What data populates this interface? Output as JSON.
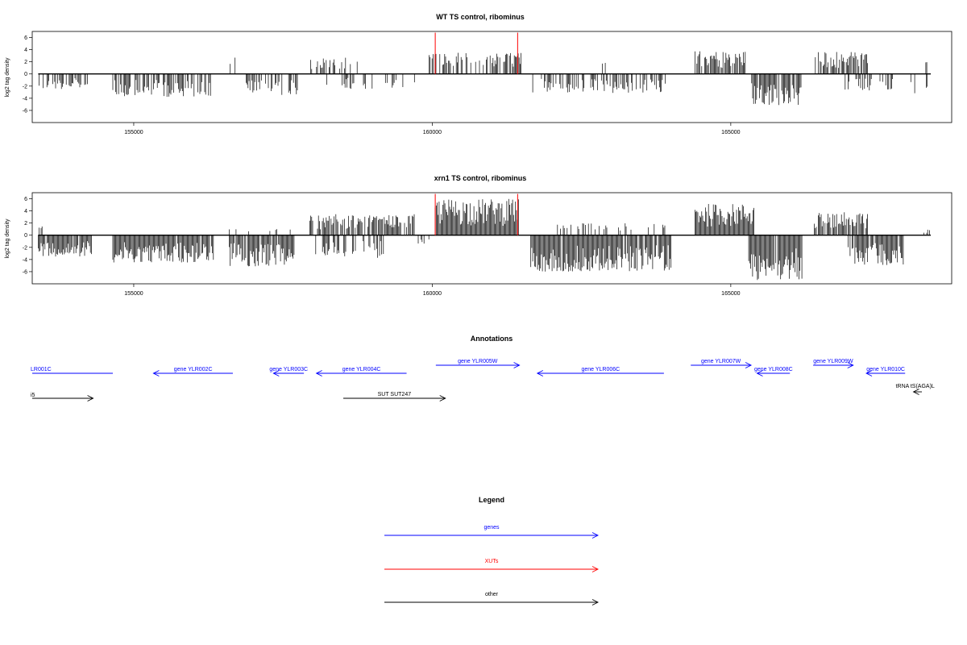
{
  "colors": {
    "genes": "#0000ff",
    "xuts": "#ff0000",
    "other": "#000000",
    "frame": "#000000"
  },
  "chart_data": [
    {
      "type": "bar",
      "title": "WT TS control, ribominus",
      "ylabel": "log2 tag density",
      "xlim": [
        153300,
        168700
      ],
      "ylim": [
        -8,
        7
      ],
      "xticks": [
        155000,
        160000,
        165000
      ],
      "xtick_labels": [
        "155000",
        "160000",
        "165000"
      ],
      "yticks": [
        -6,
        -4,
        -2,
        0,
        2,
        4,
        6
      ],
      "ytick_labels": [
        "-6",
        "-4",
        "-2",
        "0",
        "2",
        "4",
        "6"
      ],
      "xut_markers": [
        160050,
        161430
      ],
      "segments": [
        {
          "from": 153400,
          "to": 154250,
          "sign": -1,
          "max": 2.5,
          "density": 0.55
        },
        {
          "from": 154650,
          "to": 156300,
          "sign": -1,
          "max": 3.8,
          "density": 0.65
        },
        {
          "from": 156600,
          "to": 156700,
          "sign": 1,
          "max": 3.0,
          "density": 0.4
        },
        {
          "from": 156850,
          "to": 157750,
          "sign": -1,
          "max": 3.5,
          "density": 0.6
        },
        {
          "from": 157900,
          "to": 158800,
          "sign": 1,
          "max": 2.8,
          "density": 0.3
        },
        {
          "from": 158200,
          "to": 159000,
          "sign": -1,
          "max": 2.5,
          "density": 0.3
        },
        {
          "from": 159200,
          "to": 159800,
          "sign": -1,
          "max": 2.5,
          "density": 0.15
        },
        {
          "from": 159900,
          "to": 161500,
          "sign": 1,
          "max": 3.5,
          "density": 0.6
        },
        {
          "from": 161650,
          "to": 164000,
          "sign": -1,
          "max": 3.2,
          "density": 0.45
        },
        {
          "from": 162800,
          "to": 163100,
          "sign": 1,
          "max": 2.5,
          "density": 0.1
        },
        {
          "from": 164400,
          "to": 165250,
          "sign": 1,
          "max": 3.8,
          "density": 0.8
        },
        {
          "from": 165350,
          "to": 166200,
          "sign": -1,
          "max": 5.2,
          "density": 0.85
        },
        {
          "from": 166400,
          "to": 167300,
          "sign": 1,
          "max": 3.8,
          "density": 0.8
        },
        {
          "from": 166900,
          "to": 167800,
          "sign": -1,
          "max": 2.8,
          "density": 0.35
        },
        {
          "from": 168000,
          "to": 168300,
          "sign": -1,
          "max": 3.2,
          "density": 0.2
        },
        {
          "from": 168250,
          "to": 168300,
          "sign": 1,
          "max": 2.4,
          "density": 0.3
        }
      ]
    },
    {
      "type": "bar",
      "title": "xrn1 TS control, ribominus",
      "ylabel": "log2 tag density",
      "xlim": [
        153300,
        168700
      ],
      "ylim": [
        -8,
        7
      ],
      "xticks": [
        155000,
        160000,
        165000
      ],
      "xtick_labels": [
        "155000",
        "160000",
        "165000"
      ],
      "yticks": [
        -6,
        -4,
        -2,
        0,
        2,
        4,
        6
      ],
      "ytick_labels": [
        "-6",
        "-4",
        "-2",
        "0",
        "2",
        "4",
        "6"
      ],
      "xut_markers": [
        160050,
        161430
      ],
      "segments": [
        {
          "from": 153400,
          "to": 154300,
          "sign": -1,
          "max": 3.5,
          "density": 0.9
        },
        {
          "from": 153400,
          "to": 153500,
          "sign": 1,
          "max": 1.8,
          "density": 0.6
        },
        {
          "from": 154650,
          "to": 156350,
          "sign": -1,
          "max": 4.5,
          "density": 0.95
        },
        {
          "from": 156600,
          "to": 157700,
          "sign": -1,
          "max": 5.2,
          "density": 0.9
        },
        {
          "from": 156600,
          "to": 157700,
          "sign": 1,
          "max": 1.8,
          "density": 0.2
        },
        {
          "from": 157900,
          "to": 159700,
          "sign": 1,
          "max": 3.5,
          "density": 0.7
        },
        {
          "from": 158000,
          "to": 159200,
          "sign": -1,
          "max": 3.8,
          "density": 0.5
        },
        {
          "from": 159700,
          "to": 160050,
          "sign": -1,
          "max": 1.5,
          "density": 0.2
        },
        {
          "from": 160050,
          "to": 161450,
          "sign": 1,
          "max": 6.0,
          "density": 1.0
        },
        {
          "from": 161650,
          "to": 164000,
          "sign": -1,
          "max": 6.0,
          "density": 0.95
        },
        {
          "from": 162000,
          "to": 164000,
          "sign": 1,
          "max": 2.0,
          "density": 0.2
        },
        {
          "from": 164400,
          "to": 165400,
          "sign": 1,
          "max": 5.2,
          "density": 1.0
        },
        {
          "from": 165300,
          "to": 166200,
          "sign": -1,
          "max": 7.5,
          "density": 0.95
        },
        {
          "from": 166400,
          "to": 167300,
          "sign": 1,
          "max": 3.8,
          "density": 0.9
        },
        {
          "from": 166950,
          "to": 167900,
          "sign": -1,
          "max": 5.0,
          "density": 0.85
        },
        {
          "from": 168200,
          "to": 168350,
          "sign": 1,
          "max": 1.2,
          "density": 0.4
        }
      ]
    }
  ],
  "annotations": {
    "title": "Annotations",
    "features": [
      {
        "label": "LR001C",
        "start": 153300,
        "end": 154650,
        "dir": "none",
        "row": "low",
        "color": "genes"
      },
      {
        "label": "gene YLR002C",
        "start": 155330,
        "end": 156660,
        "dir": "left",
        "row": "low",
        "color": "genes"
      },
      {
        "label": "gene YLR003C",
        "start": 157340,
        "end": 157850,
        "dir": "left",
        "row": "low",
        "color": "genes"
      },
      {
        "label": "gene YLR004C",
        "start": 158060,
        "end": 159570,
        "dir": "left",
        "row": "low",
        "color": "genes"
      },
      {
        "label": "gene YLR005W",
        "start": 160060,
        "end": 161460,
        "dir": "right",
        "row": "high",
        "color": "genes"
      },
      {
        "label": "gene YLR006C",
        "start": 161760,
        "end": 163880,
        "dir": "left",
        "row": "low",
        "color": "genes"
      },
      {
        "label": "gene YLR007W",
        "start": 164330,
        "end": 165340,
        "dir": "right",
        "row": "high",
        "color": "genes"
      },
      {
        "label": "gene YLR008C",
        "start": 165440,
        "end": 165990,
        "dir": "left",
        "row": "low",
        "color": "genes"
      },
      {
        "label": "gene YLR009W",
        "start": 166380,
        "end": 167050,
        "dir": "right",
        "row": "high",
        "color": "genes"
      },
      {
        "label": "gene YLR010C",
        "start": 167270,
        "end": 167920,
        "dir": "left",
        "row": "low",
        "color": "genes"
      },
      {
        "label": "tRNA tS(AGA)L",
        "start": 168060,
        "end": 168200,
        "dir": "left",
        "row": "trna",
        "color": "other"
      },
      {
        "label": "i5",
        "start": 153300,
        "end": 154320,
        "dir": "right",
        "row": "other",
        "color": "other"
      },
      {
        "label": "SUT SUT247",
        "start": 158510,
        "end": 160220,
        "dir": "right",
        "row": "other",
        "color": "other"
      }
    ]
  },
  "legend": {
    "title": "Legend",
    "items": [
      {
        "label": "genes",
        "color": "genes"
      },
      {
        "label": "XUTs",
        "color": "xuts"
      },
      {
        "label": "other",
        "color": "other"
      }
    ]
  }
}
